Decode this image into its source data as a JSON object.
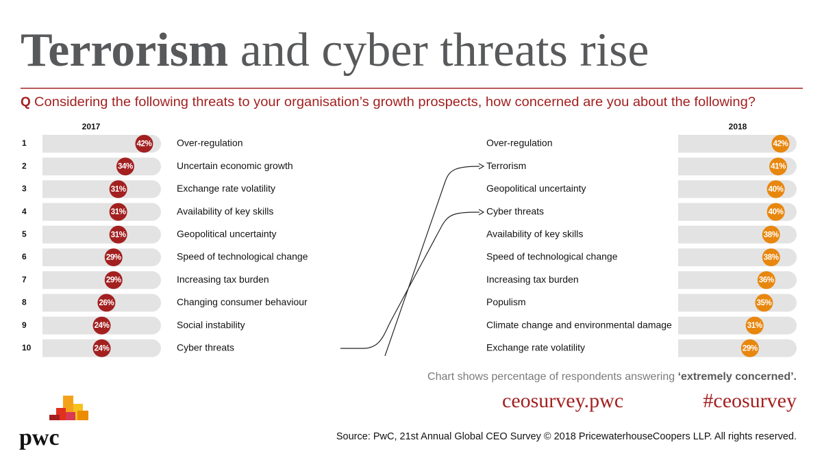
{
  "header": {
    "title_bold": "Terrorism",
    "title_rest": "and cyber threats rise",
    "question_marker": "Q",
    "question": "Considering the following threats to your organisation’s growth prospects, how concerned are you about the following?"
  },
  "ranks": [
    1,
    2,
    3,
    4,
    5,
    6,
    7,
    8,
    9,
    10
  ],
  "chart_data": [
    {
      "type": "ranked-bubble",
      "title": "2017",
      "color": "#a32020",
      "xlim": [
        0,
        50
      ],
      "categories": [
        "Over-regulation",
        "Uncertain economic growth",
        "Exchange rate volatility",
        "Availability of key skills",
        "Geopolitical uncertainty",
        "Speed of technological change",
        "Increasing tax burden",
        "Changing consumer behaviour",
        "Social instability",
        "Cyber threats"
      ],
      "values": [
        42,
        34,
        31,
        31,
        31,
        29,
        29,
        26,
        24,
        24
      ],
      "value_labels": [
        "42%",
        "34%",
        "31%",
        "31%",
        "31%",
        "29%",
        "29%",
        "26%",
        "24%",
        "24%"
      ]
    },
    {
      "type": "ranked-bubble",
      "title": "2018",
      "color": "#e8870e",
      "xlim": [
        0,
        50
      ],
      "categories": [
        "Over-regulation",
        "Terrorism",
        "Geopolitical uncertainty",
        "Cyber threats",
        "Availability of key skills",
        "Speed of technological change",
        "Increasing tax burden",
        "Populism",
        "Climate change and environmental damage",
        "Exchange rate volatility"
      ],
      "values": [
        42,
        41,
        40,
        40,
        38,
        38,
        36,
        35,
        31,
        29
      ],
      "value_labels": [
        "42%",
        "41%",
        "40%",
        "40%",
        "38%",
        "38%",
        "36%",
        "35%",
        "31%",
        "29%"
      ]
    }
  ],
  "footer": {
    "note": "Chart shows percentage of respondents answering ",
    "note_bold": "‘extremely concerned’.",
    "url": "ceosurvey.pwc",
    "hashtag": "#ceosurvey",
    "logo": "pwc",
    "source": "Source: PwC, 21st Annual Global CEO Survey © 2018 PricewaterhouseCoopers LLP. All rights reserved."
  }
}
